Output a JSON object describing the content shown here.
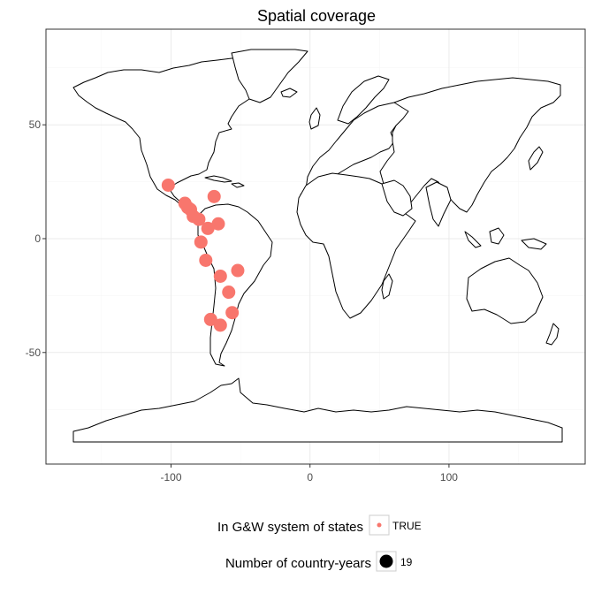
{
  "title": "Spatial coverage",
  "x_ticks": [
    {
      "value": -100,
      "label": "-100"
    },
    {
      "value": 0,
      "label": "0"
    },
    {
      "value": 100,
      "label": "100"
    }
  ],
  "y_ticks": [
    {
      "value": 50,
      "label": "50"
    },
    {
      "value": 0,
      "label": "0"
    },
    {
      "value": -50,
      "label": "-50"
    }
  ],
  "legend": {
    "color_title": "In G&W system of states",
    "color_label": "TRUE",
    "size_title": "Number of country-years",
    "size_label": "19"
  },
  "colors": {
    "point": "#f8766d",
    "land_stroke": "#000000",
    "panel_border": "#333333"
  },
  "chart_data": {
    "type": "scatter",
    "title": "Spatial coverage",
    "xlim": [
      -190,
      198
    ],
    "ylim": [
      -99,
      92
    ],
    "series": [
      {
        "name": "TRUE",
        "points": [
          {
            "x": -102,
            "y": 23.5
          },
          {
            "x": -69,
            "y": 18.5
          },
          {
            "x": -90,
            "y": 15.5
          },
          {
            "x": -88,
            "y": 13.7
          },
          {
            "x": -86,
            "y": 12.8
          },
          {
            "x": -84,
            "y": 9.8
          },
          {
            "x": -80,
            "y": 8.5
          },
          {
            "x": -66,
            "y": 6.5
          },
          {
            "x": -73.5,
            "y": 4.5
          },
          {
            "x": -78.5,
            "y": -1.5
          },
          {
            "x": -75,
            "y": -9.5
          },
          {
            "x": -52,
            "y": -14
          },
          {
            "x": -64.5,
            "y": -16.5
          },
          {
            "x": -58.5,
            "y": -23.5
          },
          {
            "x": -56,
            "y": -32.5
          },
          {
            "x": -71.5,
            "y": -35.5
          },
          {
            "x": -64.5,
            "y": -38
          }
        ]
      }
    ]
  }
}
